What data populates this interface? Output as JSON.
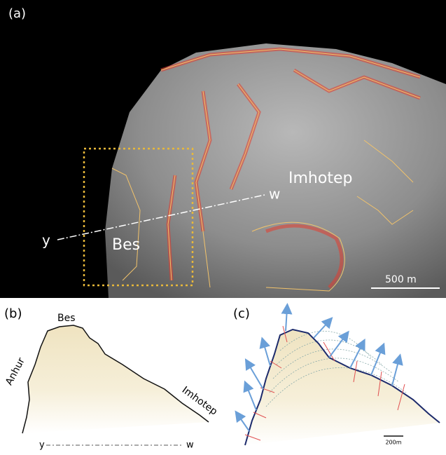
{
  "panels": {
    "a": {
      "label": "(a)",
      "region_labels": [
        "Imhotep",
        "Bes"
      ],
      "profile_start": "y",
      "profile_end": "w",
      "scale_bar": "500 m"
    },
    "b": {
      "label": "(b)",
      "region_labels": [
        "Bes",
        "Anhur",
        "Imhotep"
      ],
      "profile_start": "y",
      "profile_end": "w"
    },
    "c": {
      "label": "(c)",
      "scale_bar": "200m"
    }
  }
}
